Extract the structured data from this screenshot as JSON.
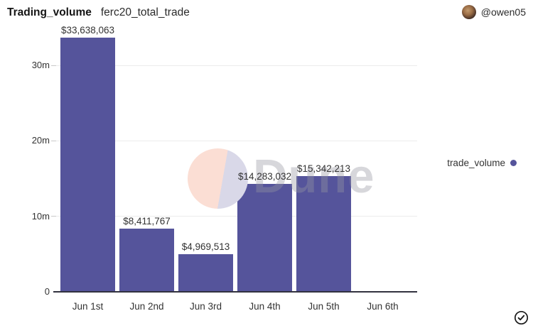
{
  "header": {
    "title": "Trading_volume",
    "subtitle": "ferc20_total_trade",
    "author": "@owen05"
  },
  "legend": {
    "label": "trade_volume"
  },
  "watermark": {
    "text": "Dune"
  },
  "icons": {
    "verified": "check-circle-icon",
    "avatar": "user-avatar"
  },
  "colors": {
    "bar": "#55549B",
    "legend_dot": "#55549B",
    "axis_line": "#32323f",
    "grid": "#ececec",
    "watermark_peach": "#fbded4",
    "watermark_lavender": "#d9d8e8"
  },
  "chart_data": {
    "type": "bar",
    "title": "Trading_volume",
    "series_name": "trade_volume",
    "categories": [
      "Jun 1st",
      "Jun 2nd",
      "Jun 3rd",
      "Jun 4th",
      "Jun 5th",
      "Jun 6th"
    ],
    "values": [
      33638063,
      8411767,
      4969513,
      14283032,
      15342213,
      0
    ],
    "value_labels": [
      "$33,638,063",
      "$8,411,767",
      "$4,969,513",
      "$14,283,032",
      "$15,342,213",
      ""
    ],
    "y_ticks": [
      {
        "label": "0",
        "value": 0
      },
      {
        "label": "10m",
        "value": 10000000
      },
      {
        "label": "20m",
        "value": 20000000
      },
      {
        "label": "30m",
        "value": 30000000
      }
    ],
    "ylim": [
      0,
      35000000
    ],
    "xlabel": "",
    "ylabel": "",
    "grid": "horizontal",
    "legend_position": "right"
  }
}
